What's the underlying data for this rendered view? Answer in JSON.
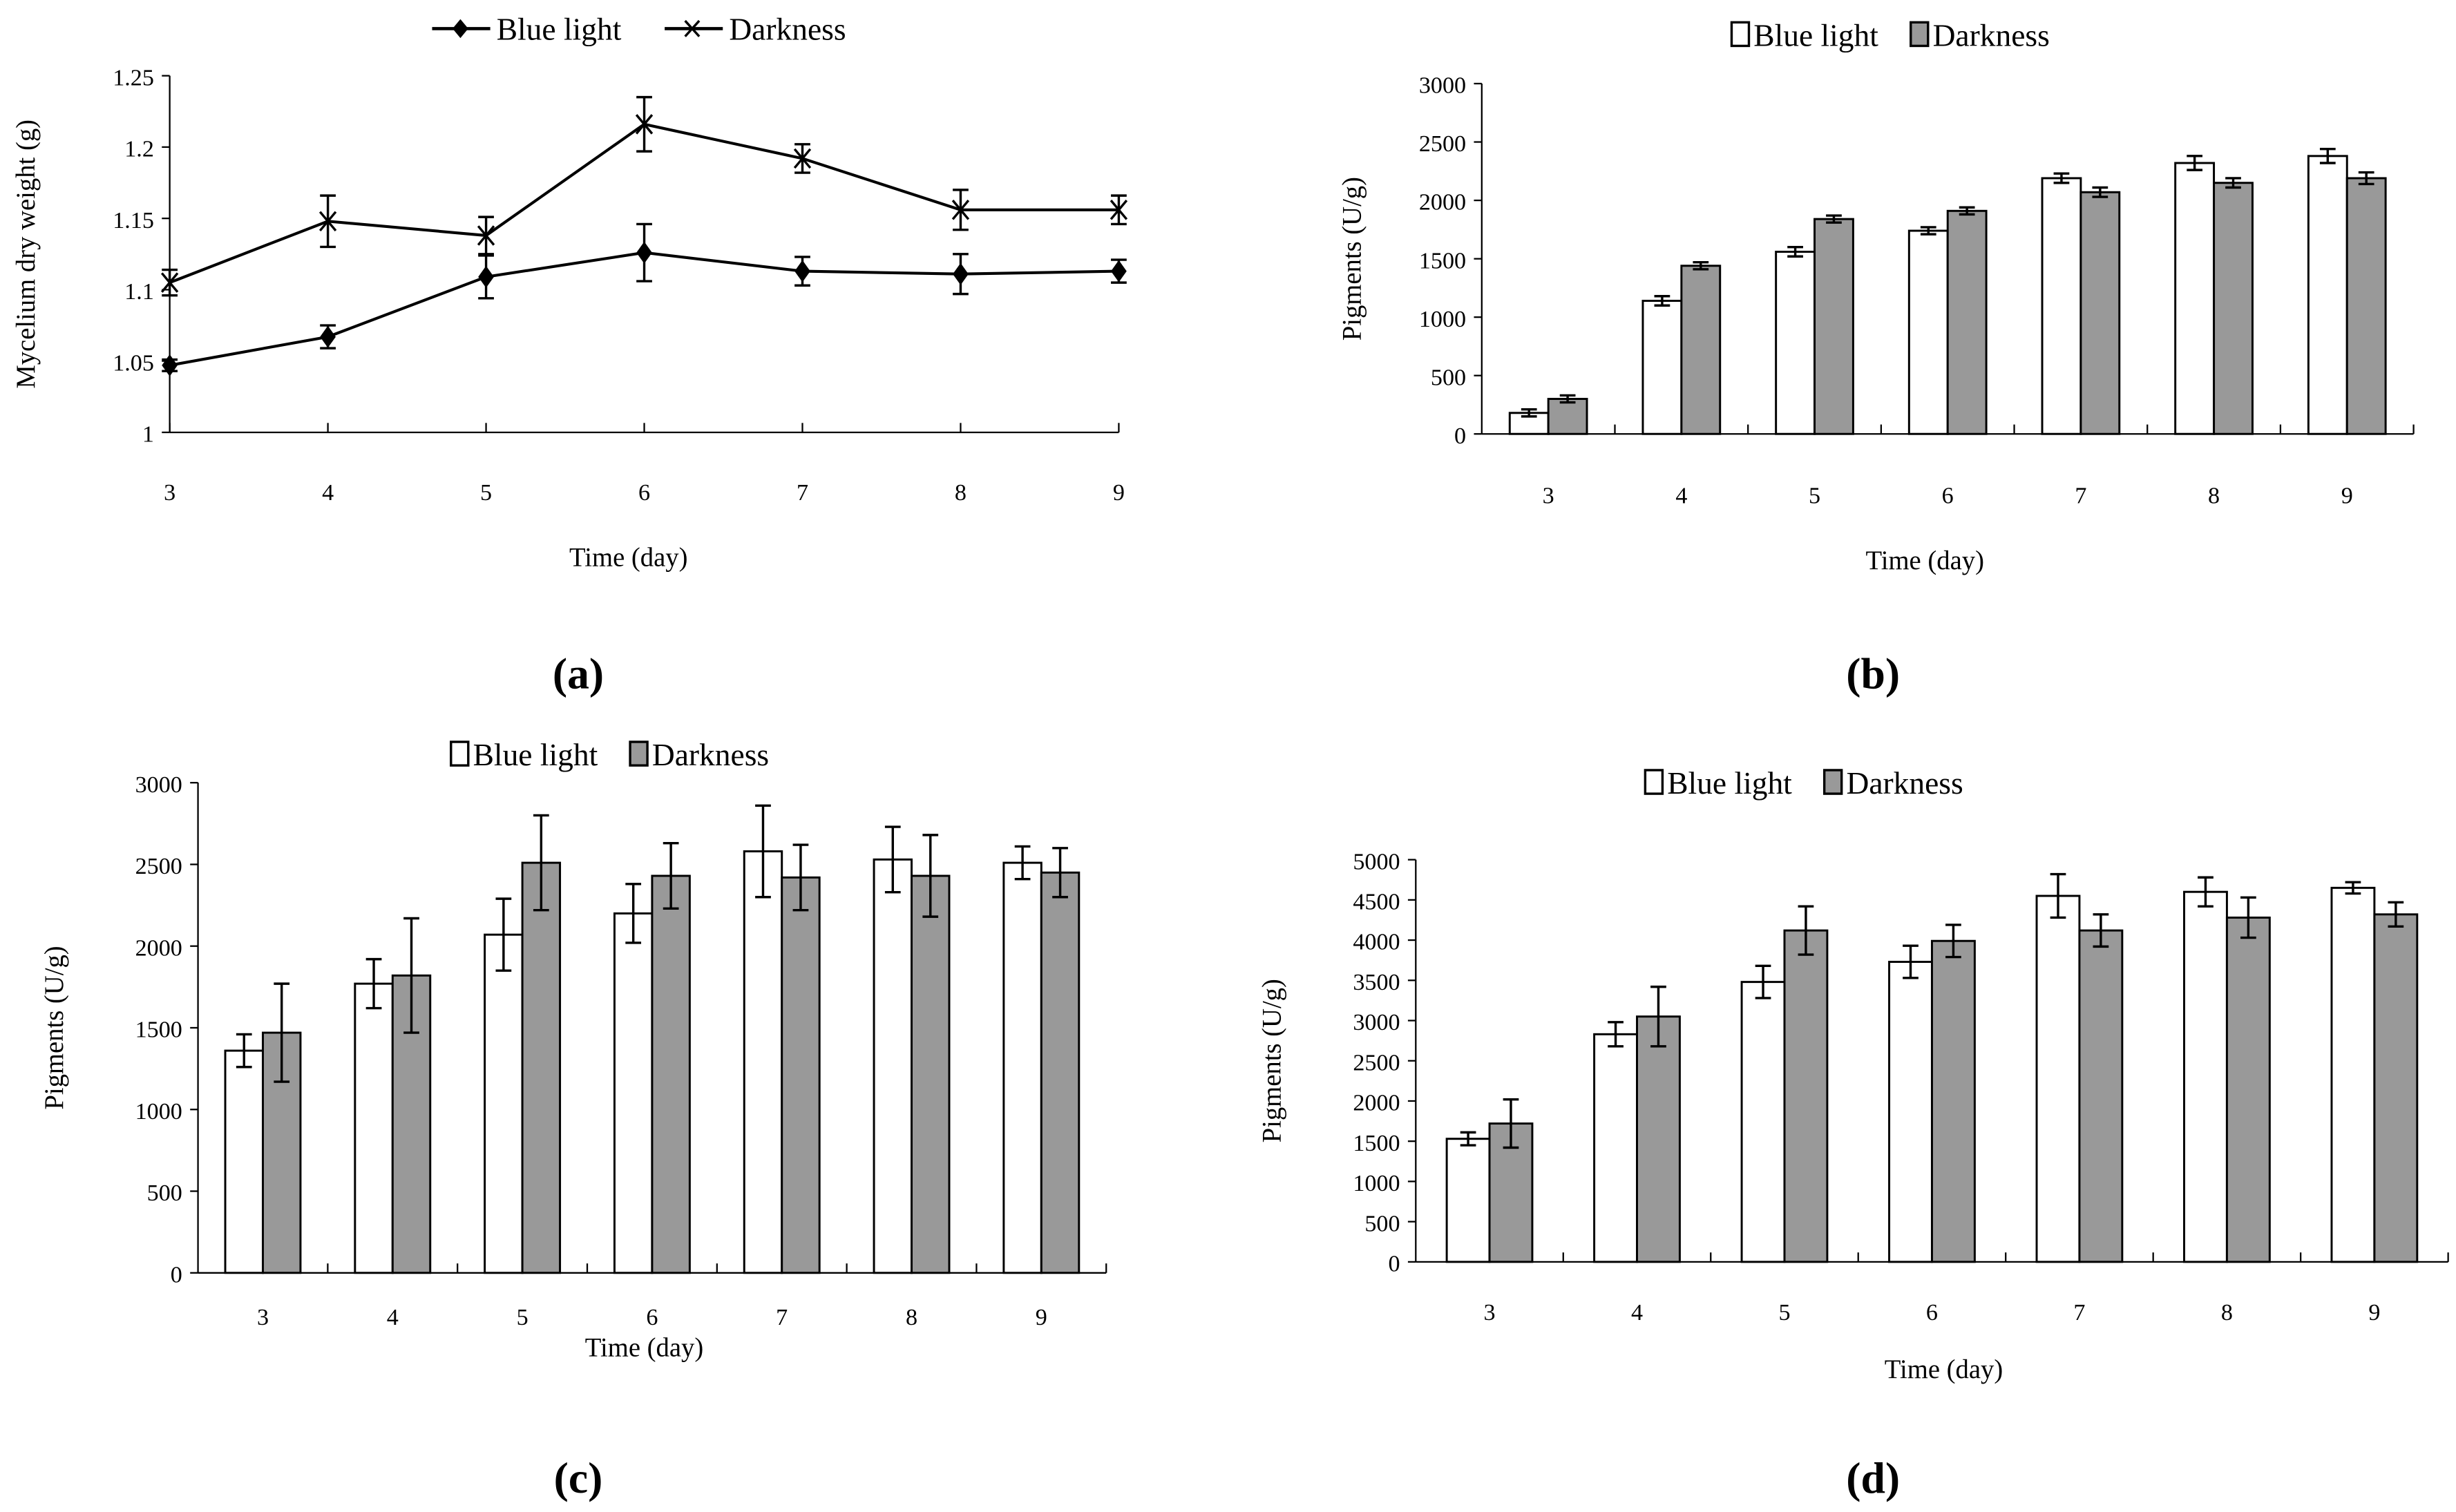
{
  "chart_data": [
    {
      "id": "a",
      "type": "line",
      "caption": "(a)",
      "categories": [
        "3",
        "4",
        "5",
        "6",
        "7",
        "8",
        "9"
      ],
      "xlabel": "Time (day)",
      "ylabel": "Mycelium dry weight (g)",
      "ylim": [
        1,
        1.25
      ],
      "yticks": [
        "1",
        "1.05",
        "1.1",
        "1.15",
        "1.2",
        "1.25"
      ],
      "legend_position": "top-center",
      "series": [
        {
          "name": "Blue light",
          "marker": "diamond",
          "values": [
            1.047,
            1.067,
            1.109,
            1.126,
            1.113,
            1.111,
            1.113
          ],
          "errors": [
            0.004,
            0.008,
            0.015,
            0.02,
            0.01,
            0.014,
            0.008
          ]
        },
        {
          "name": "Darkness",
          "marker": "x",
          "values": [
            1.105,
            1.148,
            1.138,
            1.216,
            1.192,
            1.156,
            1.156
          ],
          "errors": [
            0.009,
            0.018,
            0.013,
            0.019,
            0.01,
            0.014,
            0.01
          ]
        }
      ]
    },
    {
      "id": "b",
      "type": "bar",
      "caption": "(b)",
      "categories": [
        "3",
        "4",
        "5",
        "6",
        "7",
        "8",
        "9"
      ],
      "xlabel": "Time (day)",
      "ylabel": "Pigments (U/g)",
      "ylim": [
        0,
        3000
      ],
      "yticks": [
        "0",
        "500",
        "1000",
        "1500",
        "2000",
        "2500",
        "3000"
      ],
      "legend_position": "top-center",
      "series": [
        {
          "name": "Blue light",
          "color": "#ffffff",
          "values": [
            180,
            1140,
            1560,
            1740,
            2190,
            2320,
            2380
          ],
          "errors": [
            30,
            40,
            40,
            30,
            40,
            60,
            60
          ]
        },
        {
          "name": "Darkness",
          "color": "#999999",
          "values": [
            300,
            1440,
            1840,
            1910,
            2070,
            2150,
            2190
          ],
          "errors": [
            30,
            30,
            30,
            30,
            40,
            40,
            50
          ]
        }
      ]
    },
    {
      "id": "c",
      "type": "bar",
      "caption": "(c)",
      "categories": [
        "3",
        "4",
        "5",
        "6",
        "7",
        "8",
        "9"
      ],
      "xlabel": "Time (day)",
      "ylabel": "Pigments (U/g)",
      "ylim": [
        0,
        3000
      ],
      "yticks": [
        "0",
        "500",
        "1000",
        "1500",
        "2000",
        "2500",
        "3000"
      ],
      "legend_position": "top-center",
      "series": [
        {
          "name": "Blue light",
          "color": "#ffffff",
          "values": [
            1360,
            1770,
            2070,
            2200,
            2580,
            2530,
            2510
          ],
          "errors": [
            100,
            150,
            220,
            180,
            280,
            200,
            100
          ]
        },
        {
          "name": "Darkness",
          "color": "#999999",
          "values": [
            1470,
            1820,
            2510,
            2430,
            2420,
            2430,
            2450
          ],
          "errors": [
            300,
            350,
            290,
            200,
            200,
            250,
            150
          ]
        }
      ]
    },
    {
      "id": "d",
      "type": "bar",
      "caption": "(d)",
      "categories": [
        "3",
        "4",
        "5",
        "6",
        "7",
        "8",
        "9"
      ],
      "xlabel": "Time (day)",
      "ylabel": "Pigments (U/g)",
      "ylim": [
        0,
        5000
      ],
      "yticks": [
        "0",
        "500",
        "1000",
        "1500",
        "2000",
        "2500",
        "3000",
        "3500",
        "4000",
        "4500",
        "5000"
      ],
      "legend_position": "top-center",
      "series": [
        {
          "name": "Blue light",
          "color": "#ffffff",
          "values": [
            1530,
            2830,
            3480,
            3730,
            4550,
            4600,
            4650
          ],
          "errors": [
            80,
            150,
            200,
            200,
            270,
            180,
            70
          ]
        },
        {
          "name": "Darkness",
          "color": "#999999",
          "values": [
            1720,
            3050,
            4120,
            3990,
            4120,
            4280,
            4320
          ],
          "errors": [
            300,
            370,
            300,
            200,
            200,
            250,
            150
          ]
        }
      ]
    }
  ]
}
